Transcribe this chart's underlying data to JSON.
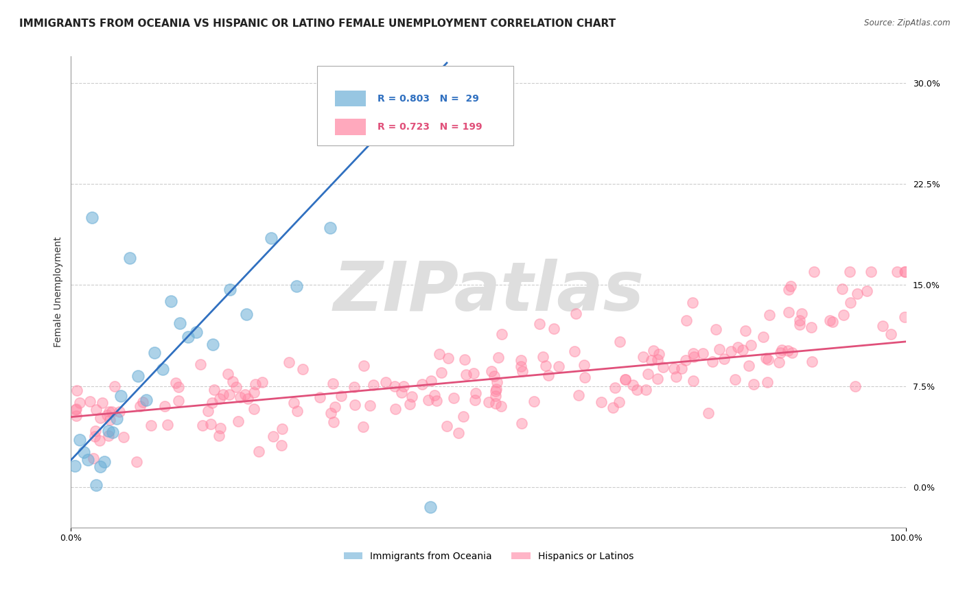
{
  "title": "IMMIGRANTS FROM OCEANIA VS HISPANIC OR LATINO FEMALE UNEMPLOYMENT CORRELATION CHART",
  "source": "Source: ZipAtlas.com",
  "ylabel": "Female Unemployment",
  "watermark": "ZIPatlas",
  "blue_R": 0.803,
  "blue_N": 29,
  "pink_R": 0.723,
  "pink_N": 199,
  "blue_color": "#6BAED6",
  "pink_color": "#FF85A2",
  "blue_line_color": "#3070C0",
  "pink_line_color": "#E0507A",
  "xlim": [
    0,
    100
  ],
  "ylim": [
    -3,
    32
  ],
  "yticks": [
    0.0,
    7.5,
    15.0,
    22.5,
    30.0
  ],
  "blue_line_x0": 0,
  "blue_line_y0": 2.0,
  "blue_line_x1": 45,
  "blue_line_y1": 31.5,
  "pink_line_x0": 0,
  "pink_line_y0": 5.2,
  "pink_line_x1": 100,
  "pink_line_y1": 10.8,
  "background_color": "#FFFFFF",
  "grid_color": "#CCCCCC",
  "title_fontsize": 11,
  "axis_label_fontsize": 10,
  "tick_fontsize": 9,
  "legend_fontsize": 10,
  "watermark_color": "#DEDEDE",
  "watermark_fontsize": 72
}
